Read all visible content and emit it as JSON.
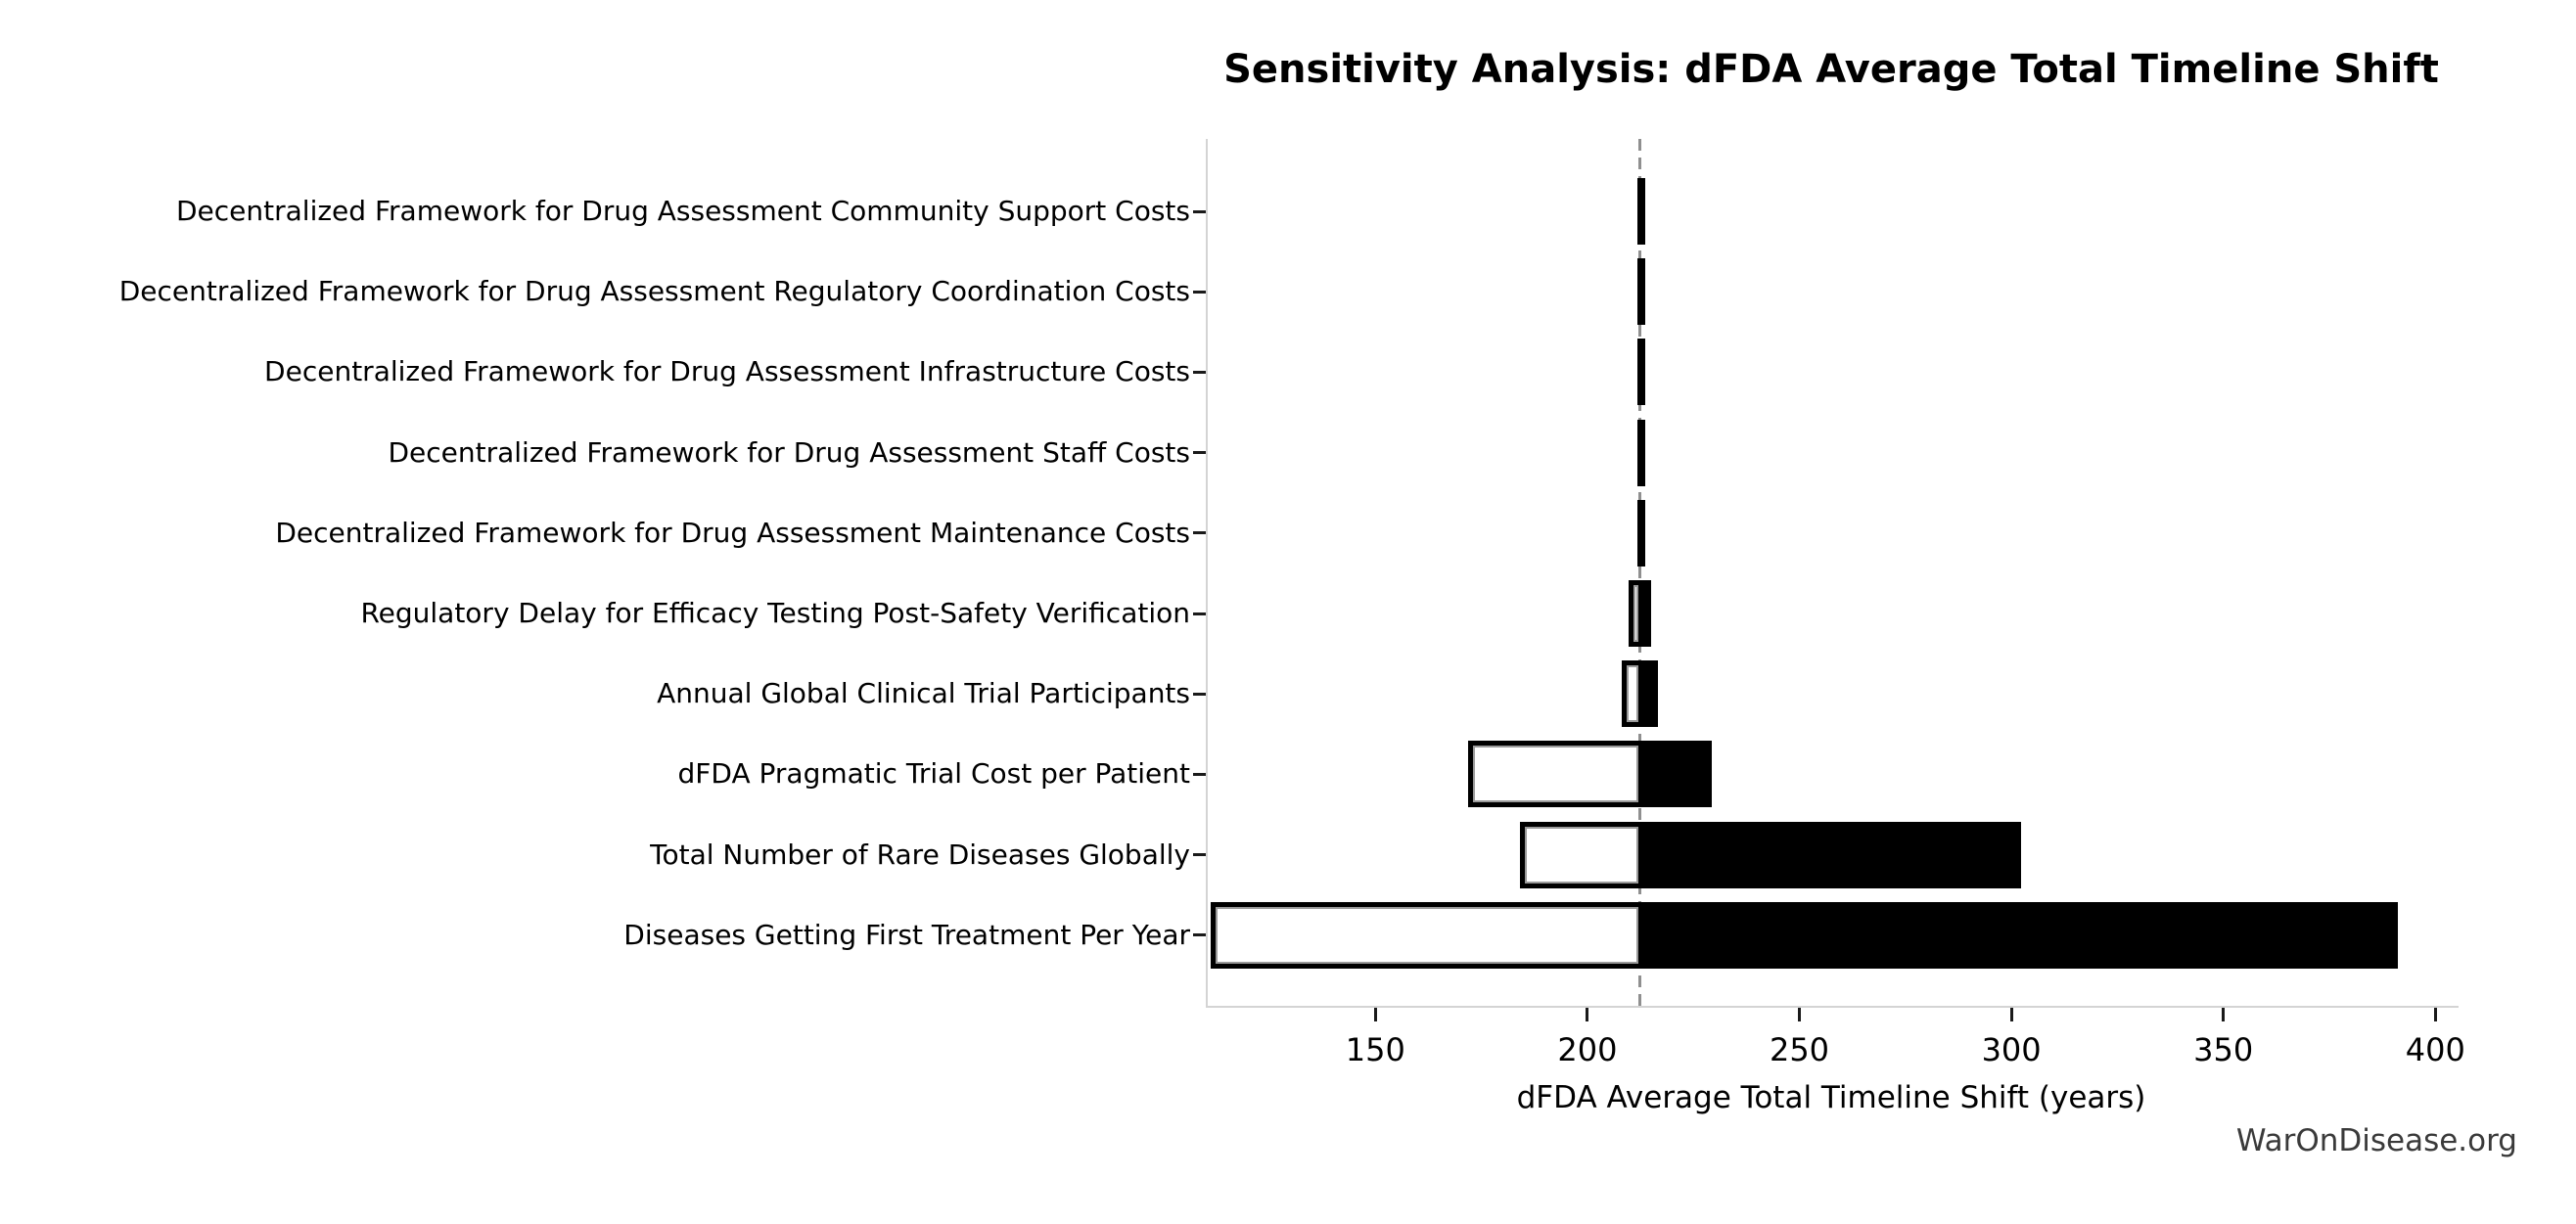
{
  "page": {
    "background": "#ffffff",
    "watermark": "WarOnDisease.org"
  },
  "chart_data": {
    "type": "bar",
    "orientation": "horizontal",
    "subtype": "tornado-sensitivity",
    "title": "Sensitivity Analysis: dFDA Average Total Timeline Shift",
    "xlabel": "dFDA Average Total Timeline Shift (years)",
    "ylabel": "",
    "xlim": [
      110,
      405
    ],
    "x_ticks": [
      150,
      200,
      250,
      300,
      350,
      400
    ],
    "grid": false,
    "legend": false,
    "baseline": 212,
    "categories": [
      "Decentralized Framework for Drug Assessment Community Support Costs",
      "Decentralized Framework for Drug Assessment Regulatory Coordination Costs",
      "Decentralized Framework for Drug Assessment Infrastructure Costs",
      "Decentralized Framework for Drug Assessment Staff Costs",
      "Decentralized Framework for Drug Assessment Maintenance Costs",
      "Regulatory Delay for Efficacy Testing Post-Safety Verification",
      "Annual Global Clinical Trial Participants",
      "dFDA Pragmatic Trial Cost per Patient",
      "Total Number of Rare Diseases Globally",
      "Diseases Getting First Treatment Per Year"
    ],
    "series": [
      {
        "name": "low_end",
        "values": [
          211.3,
          211.3,
          211.3,
          211.3,
          211.3,
          209.3,
          207.7,
          171.5,
          183.7,
          110.8
        ]
      },
      {
        "name": "high_end",
        "values": [
          213.2,
          213.2,
          213.2,
          213.2,
          213.2,
          214.5,
          216.1,
          228.8,
          301.9,
          390.7
        ]
      }
    ],
    "colors": {
      "high_bar_fill": "#000000",
      "low_bar_fill": "#ffffff",
      "low_bar_edge": "#9a9a9a",
      "baseline_line": "#8f8f8f",
      "spine": "#d4d4d4",
      "tick": "#1a1a1a",
      "text": "#000000",
      "watermark_text": "#3a3a3a"
    }
  }
}
